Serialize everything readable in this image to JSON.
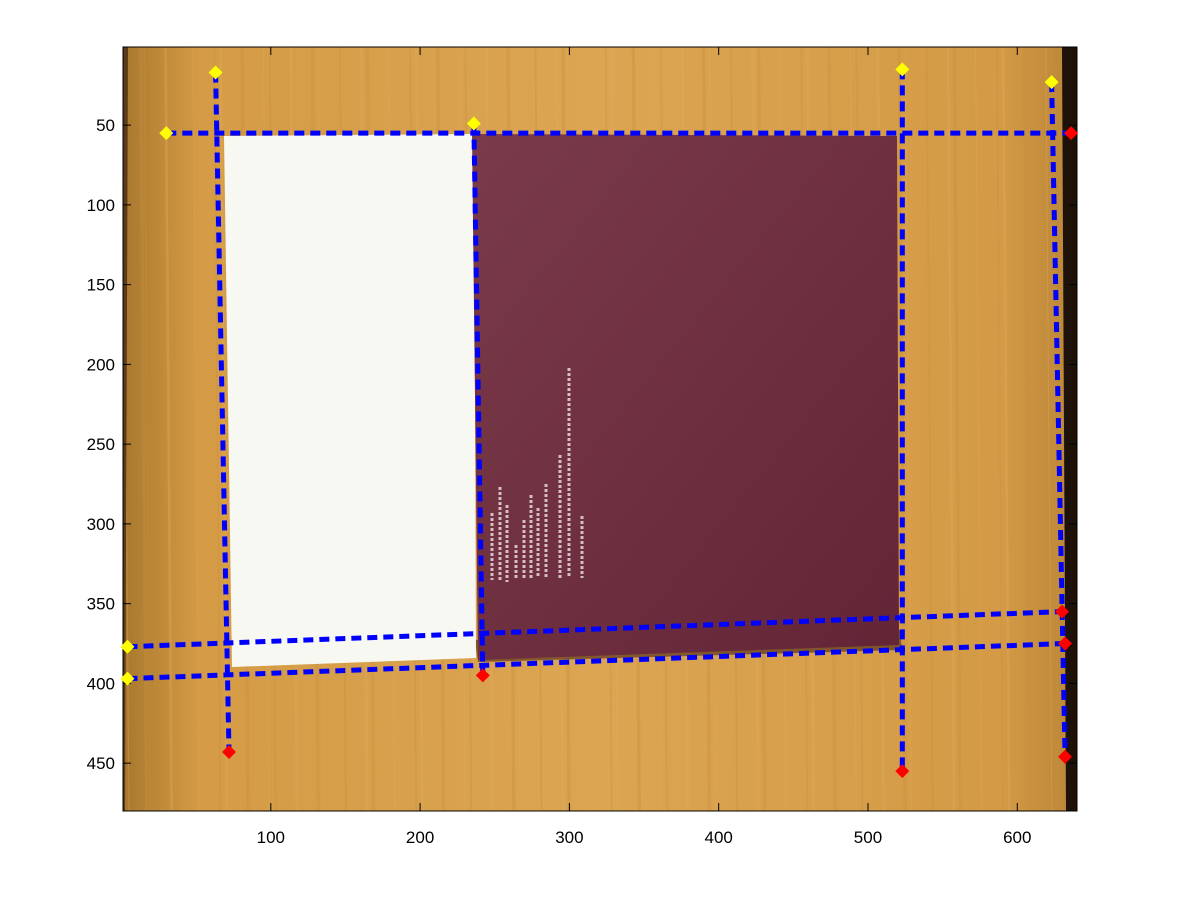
{
  "chart_data": {
    "type": "scatter",
    "title": "",
    "xlabel": "",
    "ylabel": "",
    "xlim": [
      1,
      640
    ],
    "ylim": [
      1,
      480
    ],
    "y_reversed": true,
    "grid": false,
    "background_image": "photo of a white booklet and a dark maroon book lying on a light wooden table",
    "x_ticks": [
      100,
      200,
      300,
      400,
      500,
      600
    ],
    "y_ticks": [
      50,
      100,
      150,
      200,
      250,
      300,
      350,
      400,
      450
    ],
    "x_tick_labels": [
      "100",
      "200",
      "300",
      "400",
      "500",
      "600"
    ],
    "y_tick_labels": [
      "50",
      "100",
      "150",
      "200",
      "250",
      "300",
      "350",
      "400",
      "450"
    ],
    "colors": {
      "lines": "#0000ff",
      "start_markers": "#ffff00",
      "end_markers": "#ff0000",
      "table": "#d49a45",
      "booklet": "#f7f7f1",
      "book": "#6b2a3c"
    },
    "series": [
      {
        "start": [
          63,
          17
        ],
        "end": [
          72,
          443
        ]
      },
      {
        "start": [
          236,
          49
        ],
        "end": [
          242,
          395
        ]
      },
      {
        "start": [
          523,
          15
        ],
        "end": [
          523,
          455
        ]
      },
      {
        "start": [
          623,
          23
        ],
        "end": [
          632,
          446
        ]
      },
      {
        "start": [
          30,
          55
        ],
        "end": [
          636,
          55
        ]
      },
      {
        "start": [
          4,
          377
        ],
        "end": [
          630,
          355
        ]
      },
      {
        "start": [
          4,
          397
        ],
        "end": [
          632,
          375
        ]
      }
    ]
  }
}
